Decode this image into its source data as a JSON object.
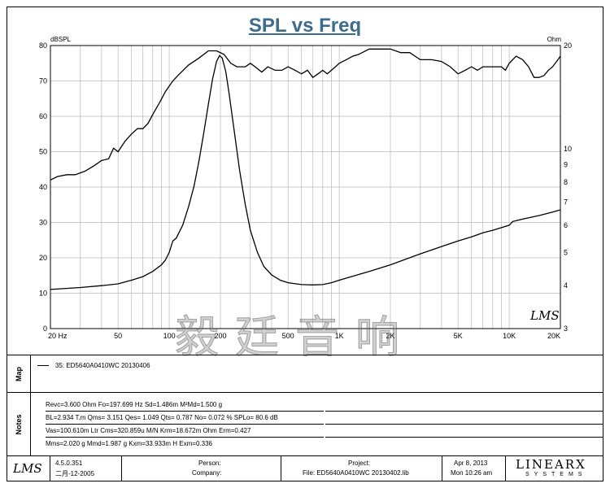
{
  "chart_data": {
    "type": "line",
    "title": "SPL vs Freq",
    "left_axis_label": "dBSPL",
    "right_axis_label": "Ohm",
    "x_scale": "log",
    "xlim": [
      20,
      20000
    ],
    "ylim_left": [
      0,
      80
    ],
    "ylim_right_log": [
      3,
      20
    ],
    "x_ticks": [
      {
        "v": 20,
        "label": "20  Hz"
      },
      {
        "v": 50,
        "label": "50"
      },
      {
        "v": 100,
        "label": "100"
      },
      {
        "v": 200,
        "label": "200"
      },
      {
        "v": 500,
        "label": "500"
      },
      {
        "v": 1000,
        "label": "1K"
      },
      {
        "v": 2000,
        "label": "2K"
      },
      {
        "v": 5000,
        "label": "5K"
      },
      {
        "v": 10000,
        "label": "10K"
      },
      {
        "v": 20000,
        "label": "20K"
      }
    ],
    "left_ticks": [
      0,
      10,
      20,
      30,
      40,
      50,
      60,
      70,
      80
    ],
    "right_ticks": [
      {
        "v": 3,
        "label": "3"
      },
      {
        "v": 4,
        "label": "4"
      },
      {
        "v": 5,
        "label": "5"
      },
      {
        "v": 6,
        "label": "6"
      },
      {
        "v": 7,
        "label": "7"
      },
      {
        "v": 8,
        "label": "8"
      },
      {
        "v": 9,
        "label": "9"
      },
      {
        "v": 10,
        "label": "10"
      },
      {
        "v": 20,
        "label": "20"
      }
    ],
    "grid": true,
    "series": [
      {
        "axis": "left",
        "points": [
          [
            20,
            42
          ],
          [
            22,
            43
          ],
          [
            25,
            43.5
          ],
          [
            28,
            43.5
          ],
          [
            32,
            44.5
          ],
          [
            36,
            46
          ],
          [
            40,
            47.5
          ],
          [
            44,
            48
          ],
          [
            47,
            51
          ],
          [
            50,
            50
          ],
          [
            55,
            53
          ],
          [
            60,
            55
          ],
          [
            65,
            56.5
          ],
          [
            70,
            56.5
          ],
          [
            75,
            58
          ],
          [
            80,
            60.5
          ],
          [
            88,
            64
          ],
          [
            95,
            67
          ],
          [
            105,
            70
          ],
          [
            115,
            72
          ],
          [
            130,
            74.5
          ],
          [
            150,
            76.5
          ],
          [
            170,
            78.5
          ],
          [
            190,
            78.5
          ],
          [
            210,
            77.5
          ],
          [
            230,
            75
          ],
          [
            250,
            74
          ],
          [
            280,
            74
          ],
          [
            300,
            75
          ],
          [
            320,
            74
          ],
          [
            350,
            72.5
          ],
          [
            380,
            74
          ],
          [
            420,
            73
          ],
          [
            460,
            73
          ],
          [
            500,
            74
          ],
          [
            550,
            73
          ],
          [
            600,
            72
          ],
          [
            650,
            73
          ],
          [
            700,
            71
          ],
          [
            750,
            72
          ],
          [
            800,
            73
          ],
          [
            850,
            72
          ],
          [
            900,
            73
          ],
          [
            950,
            74
          ],
          [
            1000,
            75
          ],
          [
            1100,
            76
          ],
          [
            1200,
            77
          ],
          [
            1300,
            77.5
          ],
          [
            1500,
            79
          ],
          [
            1800,
            79
          ],
          [
            2000,
            79
          ],
          [
            2300,
            78
          ],
          [
            2600,
            78
          ],
          [
            3000,
            76
          ],
          [
            3500,
            76
          ],
          [
            4000,
            75.5
          ],
          [
            4500,
            74
          ],
          [
            5000,
            72
          ],
          [
            5500,
            73
          ],
          [
            6000,
            74
          ],
          [
            6500,
            73
          ],
          [
            7000,
            74
          ],
          [
            8000,
            74
          ],
          [
            9000,
            74
          ],
          [
            9500,
            73
          ],
          [
            10000,
            75
          ],
          [
            11000,
            77
          ],
          [
            12000,
            76
          ],
          [
            13000,
            74
          ],
          [
            14000,
            71
          ],
          [
            15000,
            71
          ],
          [
            16000,
            71.5
          ],
          [
            17000,
            73
          ],
          [
            18000,
            74
          ],
          [
            19000,
            75.5
          ],
          [
            20000,
            77
          ]
        ]
      },
      {
        "axis": "right_log",
        "points": [
          [
            20,
            3.9
          ],
          [
            30,
            3.95
          ],
          [
            40,
            4.0
          ],
          [
            50,
            4.05
          ],
          [
            60,
            4.15
          ],
          [
            70,
            4.25
          ],
          [
            80,
            4.4
          ],
          [
            90,
            4.6
          ],
          [
            95,
            4.75
          ],
          [
            100,
            5.0
          ],
          [
            105,
            5.4
          ],
          [
            110,
            5.5
          ],
          [
            120,
            6.0
          ],
          [
            130,
            6.8
          ],
          [
            140,
            7.8
          ],
          [
            150,
            9.3
          ],
          [
            160,
            11.2
          ],
          [
            170,
            13.5
          ],
          [
            180,
            16.0
          ],
          [
            190,
            18.0
          ],
          [
            197.7,
            18.7
          ],
          [
            205,
            18.4
          ],
          [
            215,
            16.8
          ],
          [
            225,
            14.5
          ],
          [
            240,
            11.5
          ],
          [
            260,
            8.6
          ],
          [
            280,
            6.9
          ],
          [
            300,
            5.8
          ],
          [
            330,
            5.0
          ],
          [
            360,
            4.55
          ],
          [
            400,
            4.3
          ],
          [
            450,
            4.15
          ],
          [
            500,
            4.08
          ],
          [
            600,
            4.03
          ],
          [
            700,
            4.02
          ],
          [
            800,
            4.03
          ],
          [
            900,
            4.08
          ],
          [
            1000,
            4.15
          ],
          [
            1500,
            4.4
          ],
          [
            2000,
            4.6
          ],
          [
            3000,
            4.95
          ],
          [
            4000,
            5.2
          ],
          [
            5000,
            5.4
          ],
          [
            6000,
            5.55
          ],
          [
            7000,
            5.7
          ],
          [
            8000,
            5.8
          ],
          [
            9000,
            5.9
          ],
          [
            10000,
            6.0
          ],
          [
            10500,
            6.15
          ],
          [
            12000,
            6.25
          ],
          [
            15000,
            6.4
          ],
          [
            18000,
            6.55
          ],
          [
            20000,
            6.65
          ]
        ]
      }
    ]
  },
  "map": {
    "side_label": "Map",
    "entry": "35: ED5640A0410WC   20130406"
  },
  "notes": {
    "side_label": "Notes",
    "lines": [
      "Revc=3.600 Ohm  Fo=197.699 Hz  Sd=1.486m M²Md=1.500 g",
      "BL=2.934 T.m  Qms= 3.151  Qes= 1.049  Qts= 0.787  No= 0.072 %  SPLo= 80.6 dB",
      "Vas=100.610m Ltr  Cms=320.859u M/N  Krm=18.672m Ohm  Erm=0.427",
      "Mms=2.020 g  Mmd=1.987 g  Kxm=33.933m H  Exm=0.336"
    ]
  },
  "footer": {
    "version": "4.5.0.351",
    "version_date": "二月-12-2005",
    "person_label": "Person:",
    "company_label": "Company:",
    "project_label": "Project:",
    "file_label": "File: ED5640A0410WC  20130402.lib",
    "date": "Apr  8, 2013",
    "time": "Mon 10:26 am",
    "brand_top": "LINEARX",
    "brand_bottom": "SYSTEMS"
  },
  "logo_text": "LMS",
  "watermark_text": "毅廷音响"
}
